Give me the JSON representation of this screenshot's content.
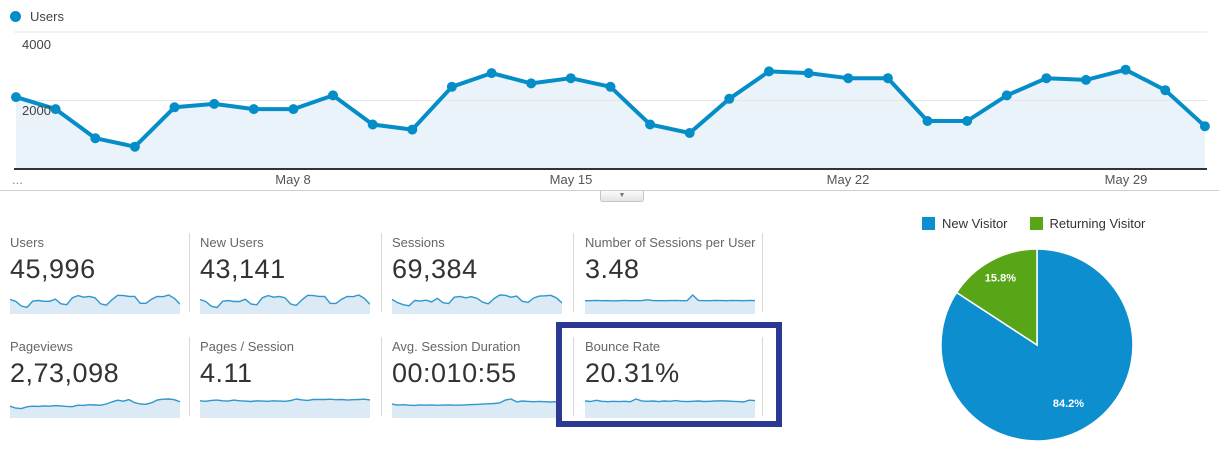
{
  "colors": {
    "line_blue": "#058dc7",
    "area_fill": "#e9f3f9",
    "grid": "#e6e6e6",
    "axis_line": "#333333",
    "spark_line": "#2f97cb",
    "spark_fill": "#dbeaf5",
    "pie_blue": "#0d8ecf",
    "pie_green": "#58a618",
    "highlight_navy": "#2b3990"
  },
  "chart_data": [
    {
      "type": "line",
      "legend": "Users",
      "x_range": "May 1 - May 31",
      "xticks": [
        "May 8",
        "May 15",
        "May 22",
        "May 29"
      ],
      "xtick_day_indices": [
        7,
        14,
        21,
        28
      ],
      "x_overflow_label": "...",
      "yticks": [
        4000,
        2000
      ],
      "ylim": [
        0,
        4300
      ],
      "grid": true,
      "legend_position": "top-left",
      "values": [
        2100,
        1750,
        900,
        650,
        1800,
        1900,
        1750,
        1750,
        2150,
        1300,
        1150,
        2400,
        2800,
        2500,
        2650,
        2400,
        1300,
        1050,
        2050,
        2850,
        2800,
        2650,
        2650,
        1400,
        1400,
        2150,
        2650,
        2600,
        2900,
        2300,
        1250
      ]
    },
    {
      "type": "pie",
      "legend_position": "top",
      "slices": [
        {
          "label": "New Visitor",
          "value": 84.2,
          "display": "84.2%",
          "color": "#0d8ecf",
          "label_color": "#ffffff",
          "label_radius": 0.69
        },
        {
          "label": "Returning Visitor",
          "value": 15.8,
          "display": "15.8%",
          "color": "#58a618",
          "label_color": "#ffffff",
          "label_radius": 0.8
        }
      ]
    }
  ],
  "scorecards": {
    "rows": [
      [
        {
          "label": "Users",
          "value": "45,996",
          "spark": [
            2100,
            1750,
            900,
            650,
            1800,
            1900,
            1750,
            1750,
            2150,
            1300,
            1150,
            2400,
            2800,
            2500,
            2650,
            2400,
            1300,
            1050,
            2050,
            2850,
            2800,
            2650,
            2650,
            1400,
            1400,
            2150,
            2650,
            2600,
            2900,
            2300,
            1250
          ]
        },
        {
          "label": "New Users",
          "value": "43,141",
          "spark": [
            2050,
            1700,
            850,
            600,
            1750,
            1850,
            1700,
            1700,
            2100,
            1250,
            1100,
            2350,
            2750,
            2450,
            2600,
            2350,
            1250,
            1000,
            2000,
            2800,
            2750,
            2600,
            2600,
            1350,
            1350,
            2100,
            2600,
            2550,
            2850,
            2250,
            1200
          ]
        },
        {
          "label": "Sessions",
          "value": "69,384",
          "spark": [
            2100,
            1500,
            1150,
            950,
            1900,
            1800,
            1950,
            1650,
            2300,
            1500,
            1350,
            2500,
            2650,
            2400,
            2600,
            2300,
            1600,
            1300,
            2250,
            2900,
            2850,
            2500,
            2700,
            1750,
            1550,
            2350,
            2700,
            2750,
            2850,
            2400,
            1450
          ]
        },
        {
          "label": "Number of Sessions per User",
          "value": "3.48",
          "spark": [
            3.4,
            3.4,
            3.5,
            3.4,
            3.45,
            3.35,
            3.4,
            3.5,
            3.42,
            3.4,
            3.45,
            3.7,
            3.45,
            3.4,
            3.42,
            3.45,
            3.5,
            3.42,
            3.4,
            5.3,
            3.5,
            3.42,
            3.4,
            3.5,
            3.45,
            3.4,
            3.5,
            3.45,
            3.4,
            3.5,
            3.45
          ]
        }
      ],
      [
        {
          "label": "Pageviews",
          "value": "2,73,098",
          "spark": [
            7200,
            5600,
            5200,
            6600,
            7100,
            6900,
            7300,
            7100,
            7600,
            7300,
            6900,
            6700,
            7900,
            7700,
            8300,
            8100,
            7900,
            8900,
            10600,
            11900,
            11100,
            12400,
            9900,
            8900,
            8600,
            9900,
            12100,
            12700,
            12900,
            12300,
            10700
          ]
        },
        {
          "label": "Pages / Session",
          "value": "4.11",
          "spark": [
            4.0,
            3.85,
            4.1,
            4.2,
            4.0,
            3.9,
            4.2,
            4.0,
            3.9,
            3.8,
            4.0,
            3.9,
            3.85,
            4.0,
            3.9,
            3.85,
            4.05,
            4.5,
            4.25,
            4.1,
            4.35,
            4.4,
            4.35,
            4.45,
            4.3,
            4.35,
            4.2,
            4.3,
            4.35,
            4.45,
            4.25
          ]
        },
        {
          "label": "Avg. Session Duration",
          "value": "00:010:55",
          "spark": [
            620,
            560,
            585,
            555,
            545,
            572,
            556,
            570,
            548,
            558,
            572,
            556,
            556,
            572,
            588,
            600,
            615,
            632,
            652,
            682,
            845,
            905,
            742,
            792,
            768,
            752,
            768,
            752,
            736,
            752,
            768
          ]
        },
        {
          "label": "Bounce Rate",
          "value": "20.31%",
          "highlighted": true,
          "spark": [
            21,
            20.2,
            22,
            20.5,
            20,
            20.6,
            20.1,
            20.5,
            20,
            24,
            21.2,
            20.5,
            21,
            20.1,
            21,
            20.5,
            21.6,
            20.5,
            20.1,
            20.6,
            21,
            20.2,
            20.6,
            21,
            21.3,
            21,
            20.5,
            20.1,
            19.6,
            22.2,
            21.6
          ]
        }
      ]
    ]
  },
  "controls": {
    "collapse_icon": "▼"
  }
}
